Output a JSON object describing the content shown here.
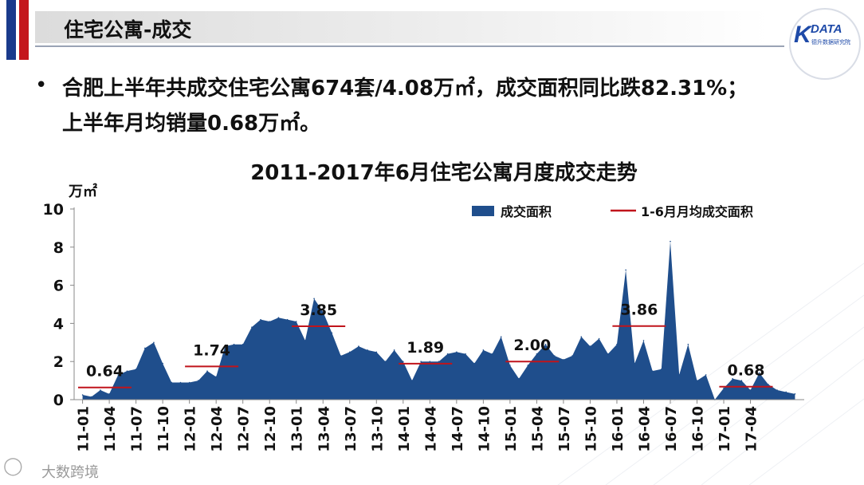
{
  "header": {
    "title": "住宅公寓-成交",
    "logo_text": "DATA",
    "logo_subtext": "德升数据研究院"
  },
  "bullet": {
    "symbol": "•",
    "line1": "合肥上半年共成交住宅公寓674套/4.08万㎡，成交面积同比跌82.31%；",
    "line2": "上半年月均销量0.68万㎡。"
  },
  "watermark": {
    "icon": "kuajing-logo-icon",
    "text": "大数跨境"
  },
  "colors": {
    "area_fill": "#1f4e8c",
    "average_line": "#c0141b",
    "flag_blue": "#1a3a8c",
    "flag_red": "#c4161c"
  },
  "chart_data": {
    "type": "area",
    "title": "2011-2017年6月住宅公寓月度成交走势",
    "ylabel": "万㎡",
    "ylim": [
      0,
      10
    ],
    "yticks": [
      0,
      2,
      4,
      6,
      8,
      10
    ],
    "grid": false,
    "legend_position": "top-right",
    "x_tick_labels": [
      "11-01",
      "11-04",
      "11-07",
      "11-10",
      "12-01",
      "12-04",
      "12-07",
      "12-10",
      "13-01",
      "13-04",
      "13-07",
      "13-10",
      "14-01",
      "14-04",
      "14-07",
      "14-10",
      "15-01",
      "15-04",
      "15-07",
      "15-10",
      "16-01",
      "16-04",
      "16-07",
      "16-10",
      "17-01",
      "17-04"
    ],
    "series": [
      {
        "name": "成交面积",
        "type": "area",
        "values": [
          0.25,
          0.15,
          0.5,
          0.3,
          1.3,
          1.5,
          1.6,
          2.7,
          3.0,
          1.9,
          0.9,
          0.9,
          0.9,
          1.0,
          1.5,
          1.2,
          2.8,
          2.9,
          2.9,
          3.8,
          4.2,
          4.1,
          4.3,
          4.2,
          4.1,
          3.1,
          5.3,
          4.6,
          3.5,
          2.3,
          2.5,
          2.8,
          2.6,
          2.5,
          2.0,
          2.6,
          2.0,
          1.0,
          2.0,
          2.0,
          2.0,
          2.4,
          2.5,
          2.4,
          1.9,
          2.6,
          2.4,
          3.3,
          1.8,
          1.1,
          1.8,
          2.4,
          2.9,
          2.3,
          2.1,
          2.3,
          3.3,
          2.8,
          3.2,
          2.4,
          2.9,
          6.8,
          1.9,
          3.1,
          1.5,
          1.6,
          8.3,
          1.3,
          2.9,
          1.0,
          1.3,
          0.0,
          0.6,
          1.1,
          1.0,
          0.5,
          1.4,
          0.8,
          0.5,
          0.4,
          0.3
        ]
      },
      {
        "name": "1-6月月均成交面积",
        "type": "segments",
        "segments": [
          {
            "year": "2011",
            "value": 0.64,
            "label": "0.64"
          },
          {
            "year": "2012",
            "value": 1.74,
            "label": "1.74"
          },
          {
            "year": "2013",
            "value": 3.85,
            "label": "3.85"
          },
          {
            "year": "2014",
            "value": 1.89,
            "label": "1.89"
          },
          {
            "year": "2015",
            "value": 2.0,
            "label": "2.00"
          },
          {
            "year": "2016",
            "value": 3.86,
            "label": "3.86"
          },
          {
            "year": "2017",
            "value": 0.68,
            "label": "0.68"
          }
        ]
      }
    ]
  }
}
